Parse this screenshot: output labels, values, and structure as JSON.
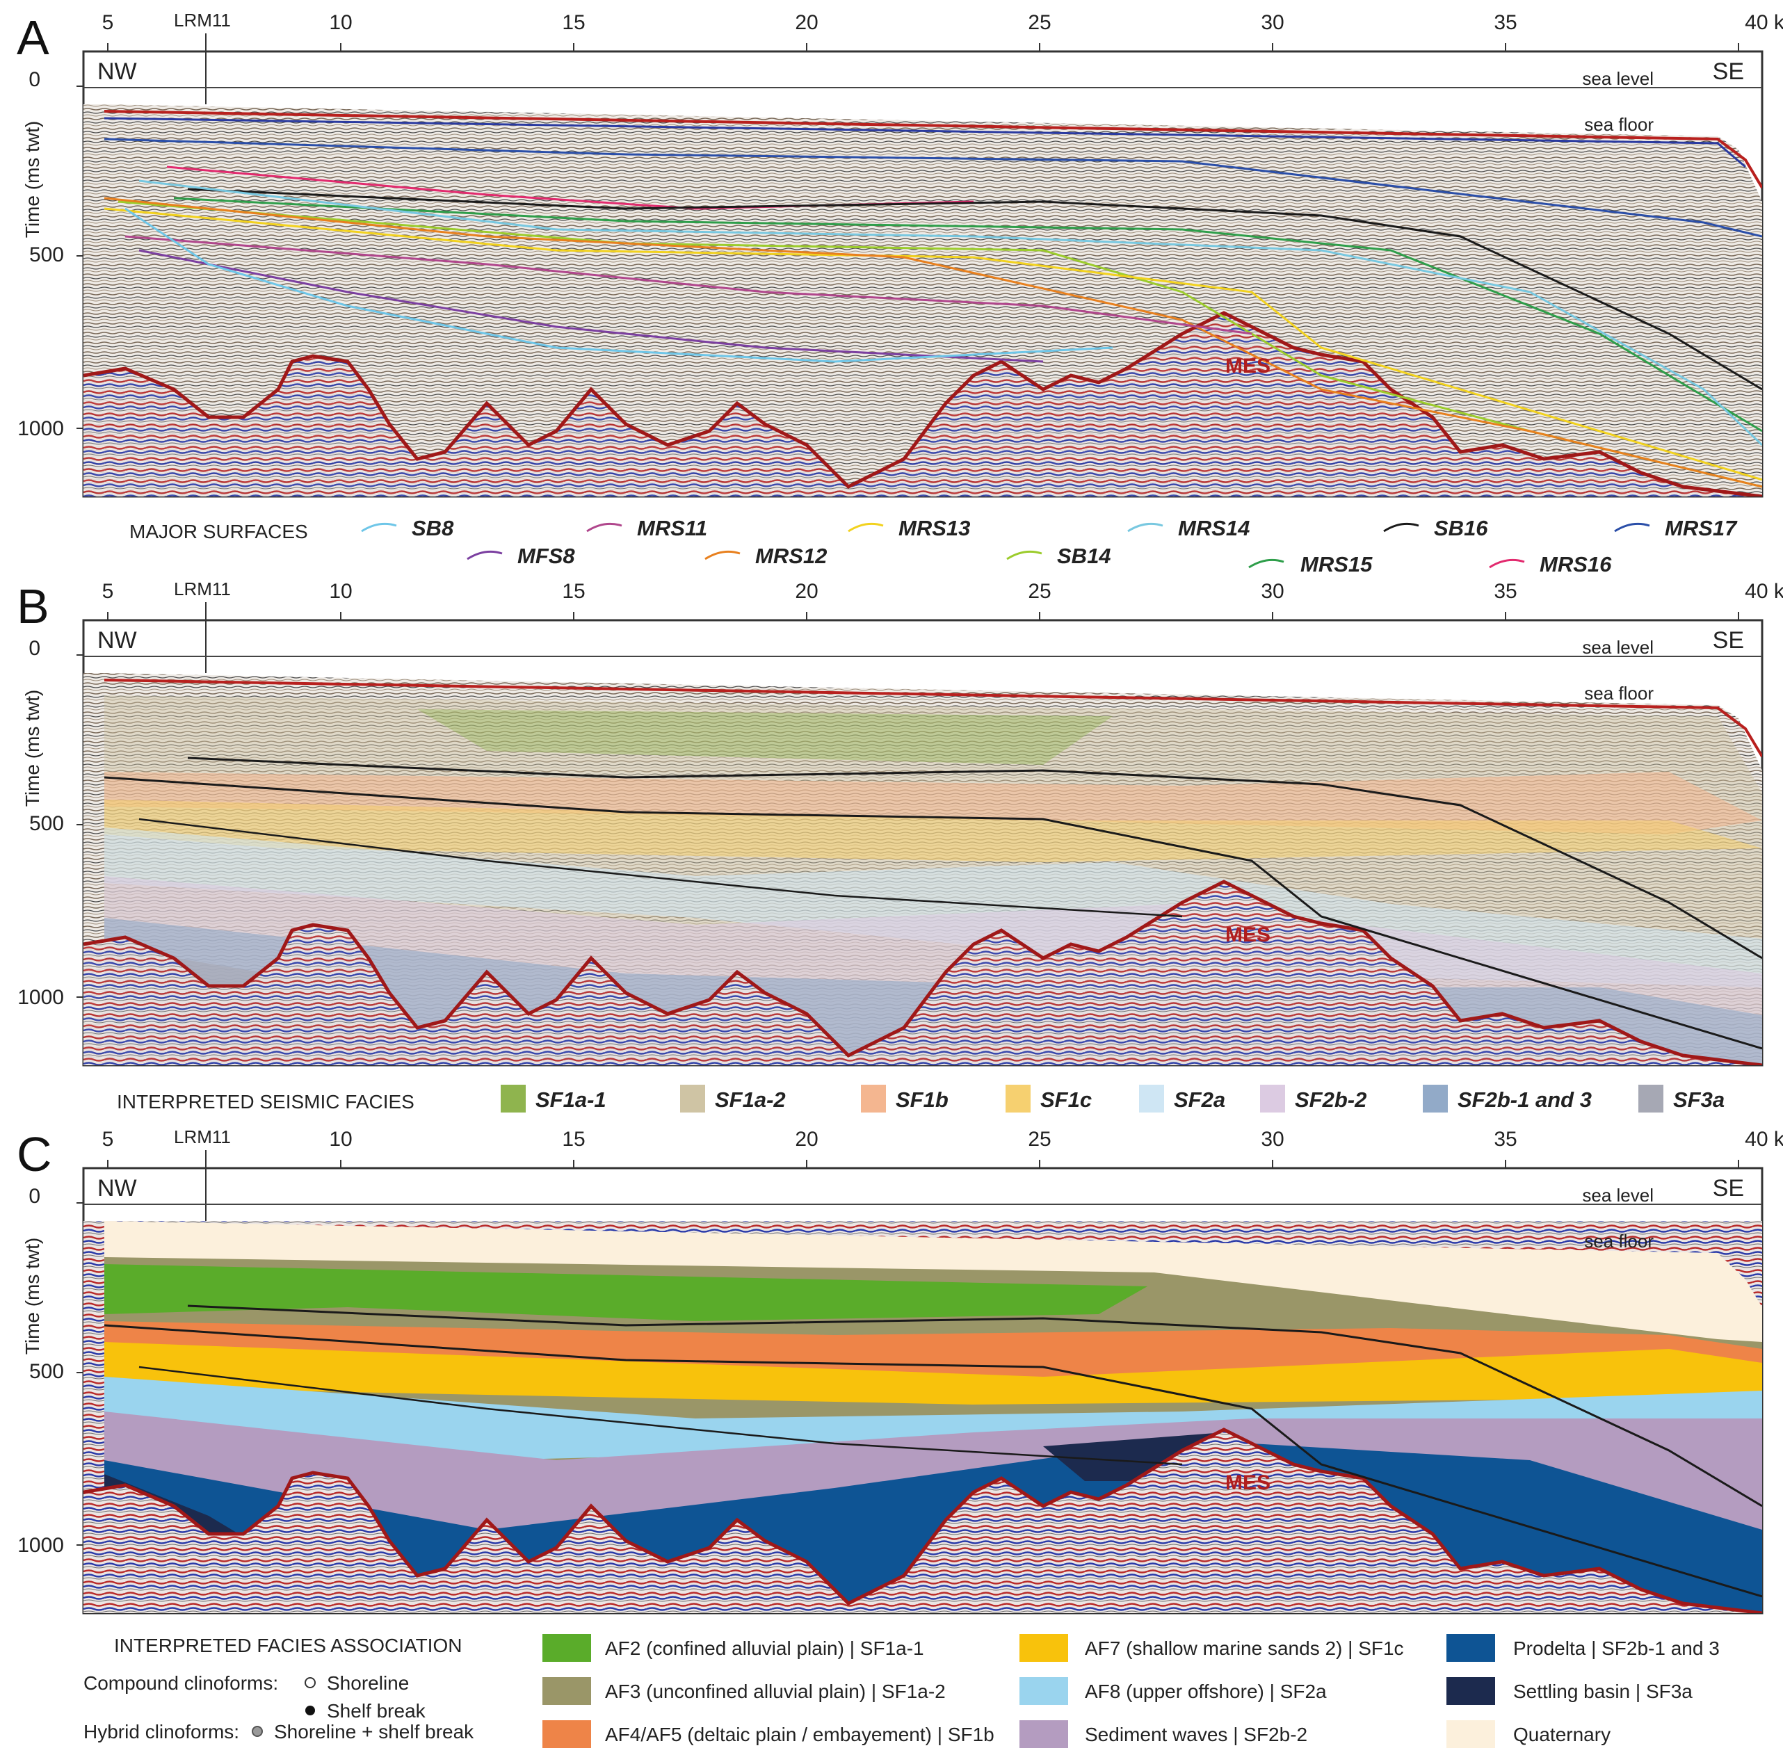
{
  "panels": [
    {
      "letter": "A"
    },
    {
      "letter": "B"
    },
    {
      "letter": "C"
    }
  ],
  "axis": {
    "km_ticks": [
      "5",
      "10",
      "15",
      "20",
      "25",
      "30",
      "35",
      "40 km"
    ],
    "well": "LRM11",
    "ylabel": "Time (ms twt)",
    "time_ticks": [
      "0",
      "500",
      "1000"
    ],
    "nw": "NW",
    "se": "SE",
    "sea_level": "sea level",
    "sea_floor": "sea floor",
    "mes": "MES"
  },
  "legend_surfaces": {
    "title": "MAJOR SURFACES",
    "items": [
      {
        "name": "SB8",
        "color": "#6ec6e8"
      },
      {
        "name": "MFS8",
        "color": "#7b3fa0"
      },
      {
        "name": "MRS11",
        "color": "#b0468c"
      },
      {
        "name": "MRS12",
        "color": "#e8801e"
      },
      {
        "name": "MRS13",
        "color": "#f2d21e"
      },
      {
        "name": "SB14",
        "color": "#9ccc2c"
      },
      {
        "name": "MRS14",
        "color": "#78c8e0"
      },
      {
        "name": "MRS15",
        "color": "#2e9e4a"
      },
      {
        "name": "SB16",
        "color": "#1a1a1a"
      },
      {
        "name": "MRS16",
        "color": "#e22a6e"
      },
      {
        "name": "MRS17",
        "color": "#2a4ea8"
      }
    ]
  },
  "legend_seismic": {
    "title": "INTERPRETED SEISMIC FACIES",
    "items": [
      {
        "name": "SF1a-1",
        "color": "#8fb44e"
      },
      {
        "name": "SF1a-2",
        "color": "#cfc4a4"
      },
      {
        "name": "SF1b",
        "color": "#f4b690"
      },
      {
        "name": "SF1c",
        "color": "#f6d070"
      },
      {
        "name": "SF2a",
        "color": "#cfe6f4"
      },
      {
        "name": "SF2b-2",
        "color": "#dccbe2"
      },
      {
        "name": "SF2b-1 and 3",
        "color": "#92aac8"
      },
      {
        "name": "SF3a",
        "color": "#a6a8b4"
      }
    ]
  },
  "legend_facies": {
    "title": "INTERPRETED FACIES ASSOCIATION",
    "compound": "Compound clinoforms:",
    "hybrid": "Hybrid clinoforms:",
    "shoreline": "Shoreline",
    "shelf_break": "Shelf break",
    "shoreline_shelf": "Shoreline + shelf break",
    "items": [
      {
        "name": "AF2 (confined alluvial plain) | SF1a-1",
        "color": "#5aac2a"
      },
      {
        "name": "AF3 (unconfined alluvial plain) | SF1a-2",
        "color": "#9a9668"
      },
      {
        "name": "AF4/AF5 (deltaic plain / embayement) | SF1b",
        "color": "#ee8448"
      },
      {
        "name": "AF7 (shallow marine sands 2) | SF1c",
        "color": "#f8c20c"
      },
      {
        "name": "AF8 (upper offshore) | SF2a",
        "color": "#9ad4ee"
      },
      {
        "name": "Sediment waves | SF2b-2",
        "color": "#b49cc0"
      },
      {
        "name": "Prodelta | SF2b-1 and 3",
        "color": "#0e5494"
      },
      {
        "name": "Settling basin | SF3a",
        "color": "#1c2a4e"
      },
      {
        "name": "Quaternary",
        "color": "#fcf0dc"
      }
    ]
  }
}
